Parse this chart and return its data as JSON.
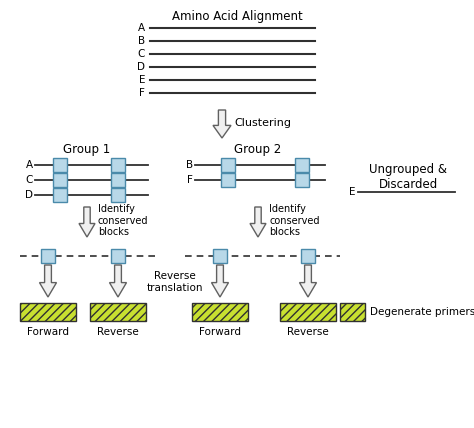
{
  "bg_color": "#ffffff",
  "box_color": "#b8d8e8",
  "box_edge_color": "#4a8aaa",
  "primer_color": "#c8e030",
  "primer_stripe_color": "#5a8000",
  "arrow_fill": "#f0f0f0",
  "arrow_edge": "#606060",
  "line_color": "#303030",
  "text_color": "#000000",
  "title": "Amino Acid Alignment",
  "sequences": [
    "A",
    "B",
    "C",
    "D",
    "E",
    "F"
  ],
  "group1_label": "Group 1",
  "group2_label": "Group 2",
  "group1_seqs": [
    "A",
    "C",
    "D"
  ],
  "group2_seqs": [
    "B",
    "F"
  ],
  "ungrouped_label": "Ungrouped &\nDiscarded",
  "ungrouped_seq": "E",
  "identify_label": "Identify\nconserved\nblocks",
  "reverse_translation_label": "Reverse\ntranslation",
  "degenerate_label": "Degenerate primers",
  "forward_label": "Forward",
  "reverse_label": "Reverse"
}
